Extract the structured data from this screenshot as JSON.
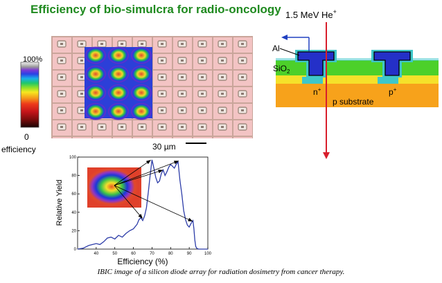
{
  "title": "Efficiency of bio-simulcra for radio-oncology",
  "caption": "IBIC image of a silicon diode array for radiation dosimetry from cancer therapy.",
  "colorbar": {
    "top_label": "100%",
    "bottom_value": "0",
    "bottom_word": "efficiency"
  },
  "scale_bar": {
    "label_num": "30 ",
    "label_unit": "µm"
  },
  "device": {
    "beam_energy": "1.5 MeV He",
    "beam_charge": "+",
    "al_label": "Al",
    "sio2_label": "SiO",
    "sio2_sub": "2",
    "n_label": "n",
    "n_sup": "+",
    "p_label": "p",
    "p_sup": "+",
    "substrate_label": "p substrate"
  },
  "colors": {
    "title_green": "#1f8a1f",
    "beam_red": "#d81e2c",
    "substrate_orange": "#f7a21b",
    "oxide_green": "#4cd02a",
    "diffusion_yellow": "#f5e12a",
    "implant_cyan": "#3ec7c9",
    "metal_blue": "#2430c8"
  },
  "chart_data": {
    "type": "line",
    "title": "",
    "xlabel": "Efficiency (%)",
    "ylabel": "Relative Yield",
    "xlim": [
      30,
      100
    ],
    "ylim": [
      0,
      100
    ],
    "xticks": [
      40,
      50,
      60,
      70,
      80,
      90,
      100
    ],
    "yticks": [
      0,
      20,
      40,
      60,
      80,
      100
    ],
    "x": [
      30,
      33,
      36,
      38,
      40,
      42,
      44,
      46,
      48,
      50,
      52,
      54,
      56,
      58,
      60,
      62,
      63,
      64,
      65,
      66,
      67,
      68,
      69,
      70,
      71,
      72,
      73,
      74,
      75,
      76,
      77,
      78,
      79,
      80,
      81,
      82,
      83,
      84,
      85,
      86,
      87,
      88,
      89,
      90,
      91,
      92,
      92.5,
      93,
      93.5,
      94,
      95,
      97,
      100
    ],
    "y": [
      0,
      1,
      4,
      5,
      6,
      5,
      8,
      12,
      13,
      11,
      15,
      13,
      17,
      20,
      22,
      27,
      32,
      34,
      31,
      36,
      45,
      62,
      80,
      97,
      88,
      78,
      72,
      74,
      82,
      86,
      80,
      84,
      89,
      92,
      90,
      88,
      92,
      95,
      75,
      60,
      42,
      32,
      26,
      24,
      28,
      31,
      22,
      10,
      3,
      1,
      0,
      0,
      0
    ],
    "annotation": "inset IBIC map with arrows to peaks"
  }
}
